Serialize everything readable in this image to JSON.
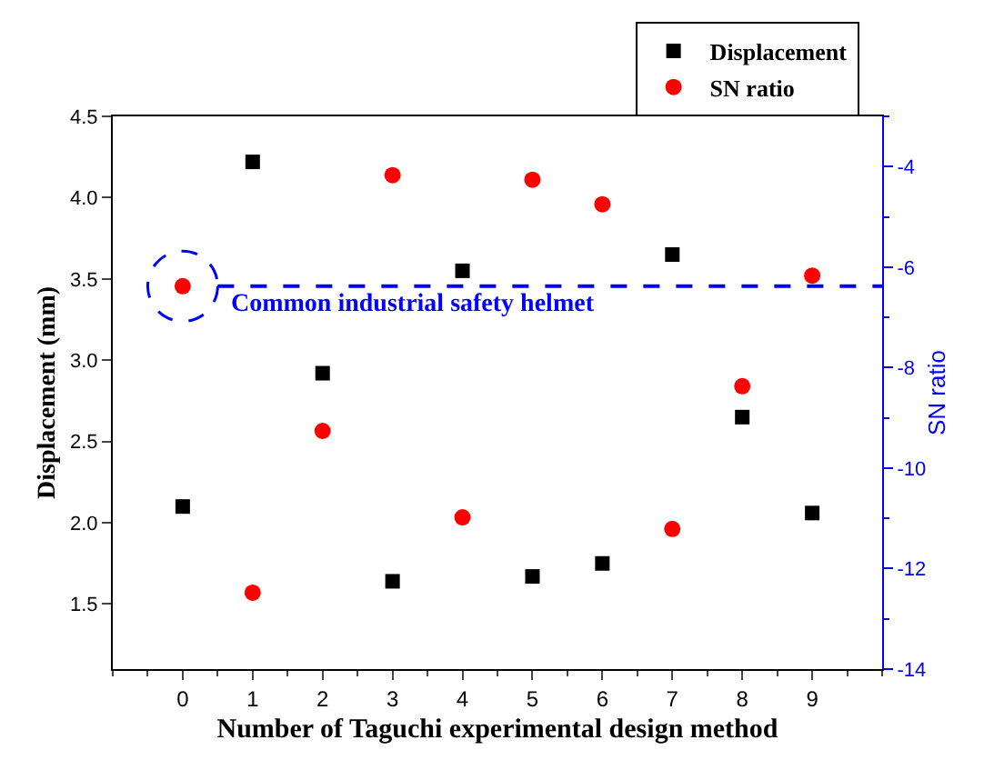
{
  "chart_data": {
    "type": "scatter",
    "xlabel": "Number of Taguchi experimental design method",
    "ylabel": "Displacement (mm)",
    "y2label": "SN ratio",
    "x": [
      0,
      1,
      2,
      3,
      4,
      5,
      6,
      7,
      8,
      9
    ],
    "series": [
      {
        "name": "Displacement",
        "color": "#000000",
        "marker": "square",
        "values": [
          2.1,
          4.22,
          2.92,
          1.64,
          3.55,
          1.67,
          1.75,
          3.65,
          2.65,
          2.06
        ]
      },
      {
        "name": "SN ratio",
        "color": "#ff0000",
        "marker": "circle",
        "axis": "y2",
        "values": [
          -6.38,
          -12.48,
          -9.26,
          -4.17,
          -10.98,
          -4.26,
          -4.75,
          -11.21,
          -8.37,
          -6.17
        ]
      }
    ],
    "xlim": [
      -1,
      10
    ],
    "xticks": [
      0,
      1,
      2,
      3,
      4,
      5,
      6,
      7,
      8,
      9
    ],
    "ylim": [
      1.1,
      4.5
    ],
    "yticks": [
      1.5,
      {
        "value": 2,
        "label": "2.0"
      },
      2.5,
      {
        "value": 3,
        "label": "3.0"
      },
      3.5,
      {
        "value": 4,
        "label": "4.0"
      },
      4.5
    ],
    "y2lim": [
      -14,
      -3
    ],
    "y2ticks": [
      -14,
      -12,
      -10,
      -8,
      -6,
      -4
    ],
    "ref_lines": [
      {
        "axis": "y2",
        "value": -6.38,
        "label": "Common industrial safety helmet",
        "color": "#0000ff",
        "line_style": "dashed"
      }
    ],
    "legend": "top right"
  }
}
